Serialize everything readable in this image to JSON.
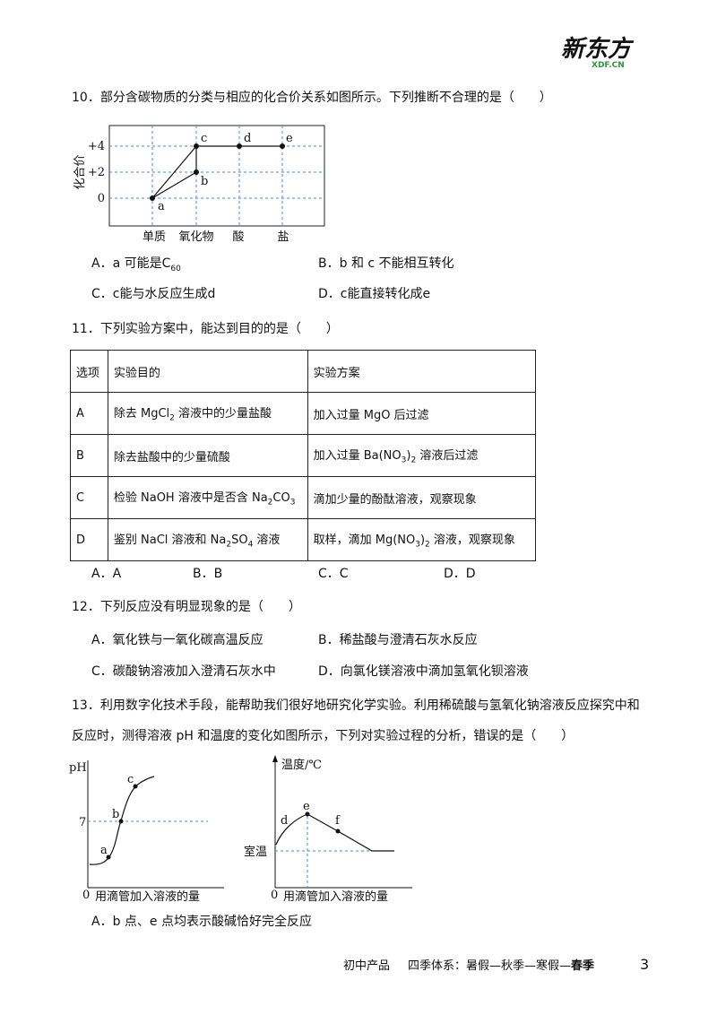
{
  "header": {
    "logo": "新东方",
    "logo_sub": "XDF.CN"
  },
  "q10": {
    "stem": "10．部分含碳物质的分类与相应的化合价关系如图所示。下列推断不合理的是（　　）",
    "figure": {
      "y_label": "化合价",
      "y_ticks": [
        "+4",
        "+2",
        "0"
      ],
      "points": [
        "a",
        "b",
        "c",
        "d",
        "e"
      ],
      "x_labels": [
        "单质",
        "氧化物",
        "酸",
        "盐"
      ]
    },
    "options": [
      [
        "A．a 可能是C",
        {
          "sub": "60"
        }
      ],
      [
        "B．b 和 c 不能相互转化"
      ],
      [
        "C．c能与水反应生成d"
      ],
      [
        "D．c能直接转化成e"
      ]
    ]
  },
  "q11": {
    "stem": "11．下列实验方案中，能达到目的的是（　　）",
    "table": {
      "header": [
        "选项",
        "实验目的",
        "实验方案"
      ],
      "rows": [
        [
          [
            "A"
          ],
          [
            "除去 MgCl",
            {
              "sub": "2"
            },
            " 溶液中的少量盐酸"
          ],
          [
            "加入过量 MgO 后过滤"
          ]
        ],
        [
          [
            "B"
          ],
          [
            "除去盐酸中的少量硫酸"
          ],
          [
            "加入过量 Ba(NO",
            {
              "sub": "3"
            },
            ")",
            {
              "sub": "2"
            },
            " 溶液后过滤"
          ]
        ],
        [
          [
            "C"
          ],
          [
            "检验 NaOH 溶液中是否含 Na",
            {
              "sub": "2"
            },
            "CO",
            {
              "sub": "3"
            }
          ],
          [
            "滴加少量的酚酞溶液，观察现象"
          ]
        ],
        [
          [
            "D"
          ],
          [
            "鉴别 NaCl 溶液和 Na",
            {
              "sub": "2"
            },
            "SO",
            {
              "sub": "4"
            },
            " 溶液"
          ],
          [
            "取样，滴加 Mg(NO",
            {
              "sub": "3"
            },
            ")",
            {
              "sub": "2"
            },
            " 溶液，观察现象"
          ]
        ]
      ]
    },
    "options": [
      "A．A",
      "B．B",
      "C．C",
      "D．D"
    ]
  },
  "q12": {
    "stem": "12．下列反应没有明显现象的是（　　）",
    "options": [
      "A．氧化铁与一氧化碳高温反应",
      "B．稀盐酸与澄清石灰水反应",
      "C．碳酸钠溶液加入澄清石灰水中",
      "D．向氯化镁溶液中滴加氢氧化钡溶液"
    ]
  },
  "q13": {
    "stem": [
      "13．利用数字化技术手段，能帮助我们很好地研究化学实验。利用稀硫酸与氢氧化钠溶液反应探究中和",
      "反应时，测得溶液 pH 和温度的变化如图所示，下列对实验过程的分析，错误的是（　　）"
    ],
    "figure_ph": {
      "y_label": "pH",
      "y_mark": "7",
      "points": [
        "a",
        "b",
        "c"
      ],
      "origin": "0",
      "x_label": "用滴管加入溶液的量"
    },
    "figure_temp": {
      "y_label": "温度/℃",
      "y_mark": "室温",
      "points": [
        "d",
        "e",
        "f"
      ],
      "origin": "0",
      "x_label": "用滴管加入溶液的量"
    },
    "options": [
      "A．b 点、e 点均表示酸碱恰好完全反应"
    ]
  },
  "footer": {
    "product": "初中产品",
    "system": "四季体系：暑假—秋季—寒假—",
    "season": "春季",
    "page": "3"
  }
}
